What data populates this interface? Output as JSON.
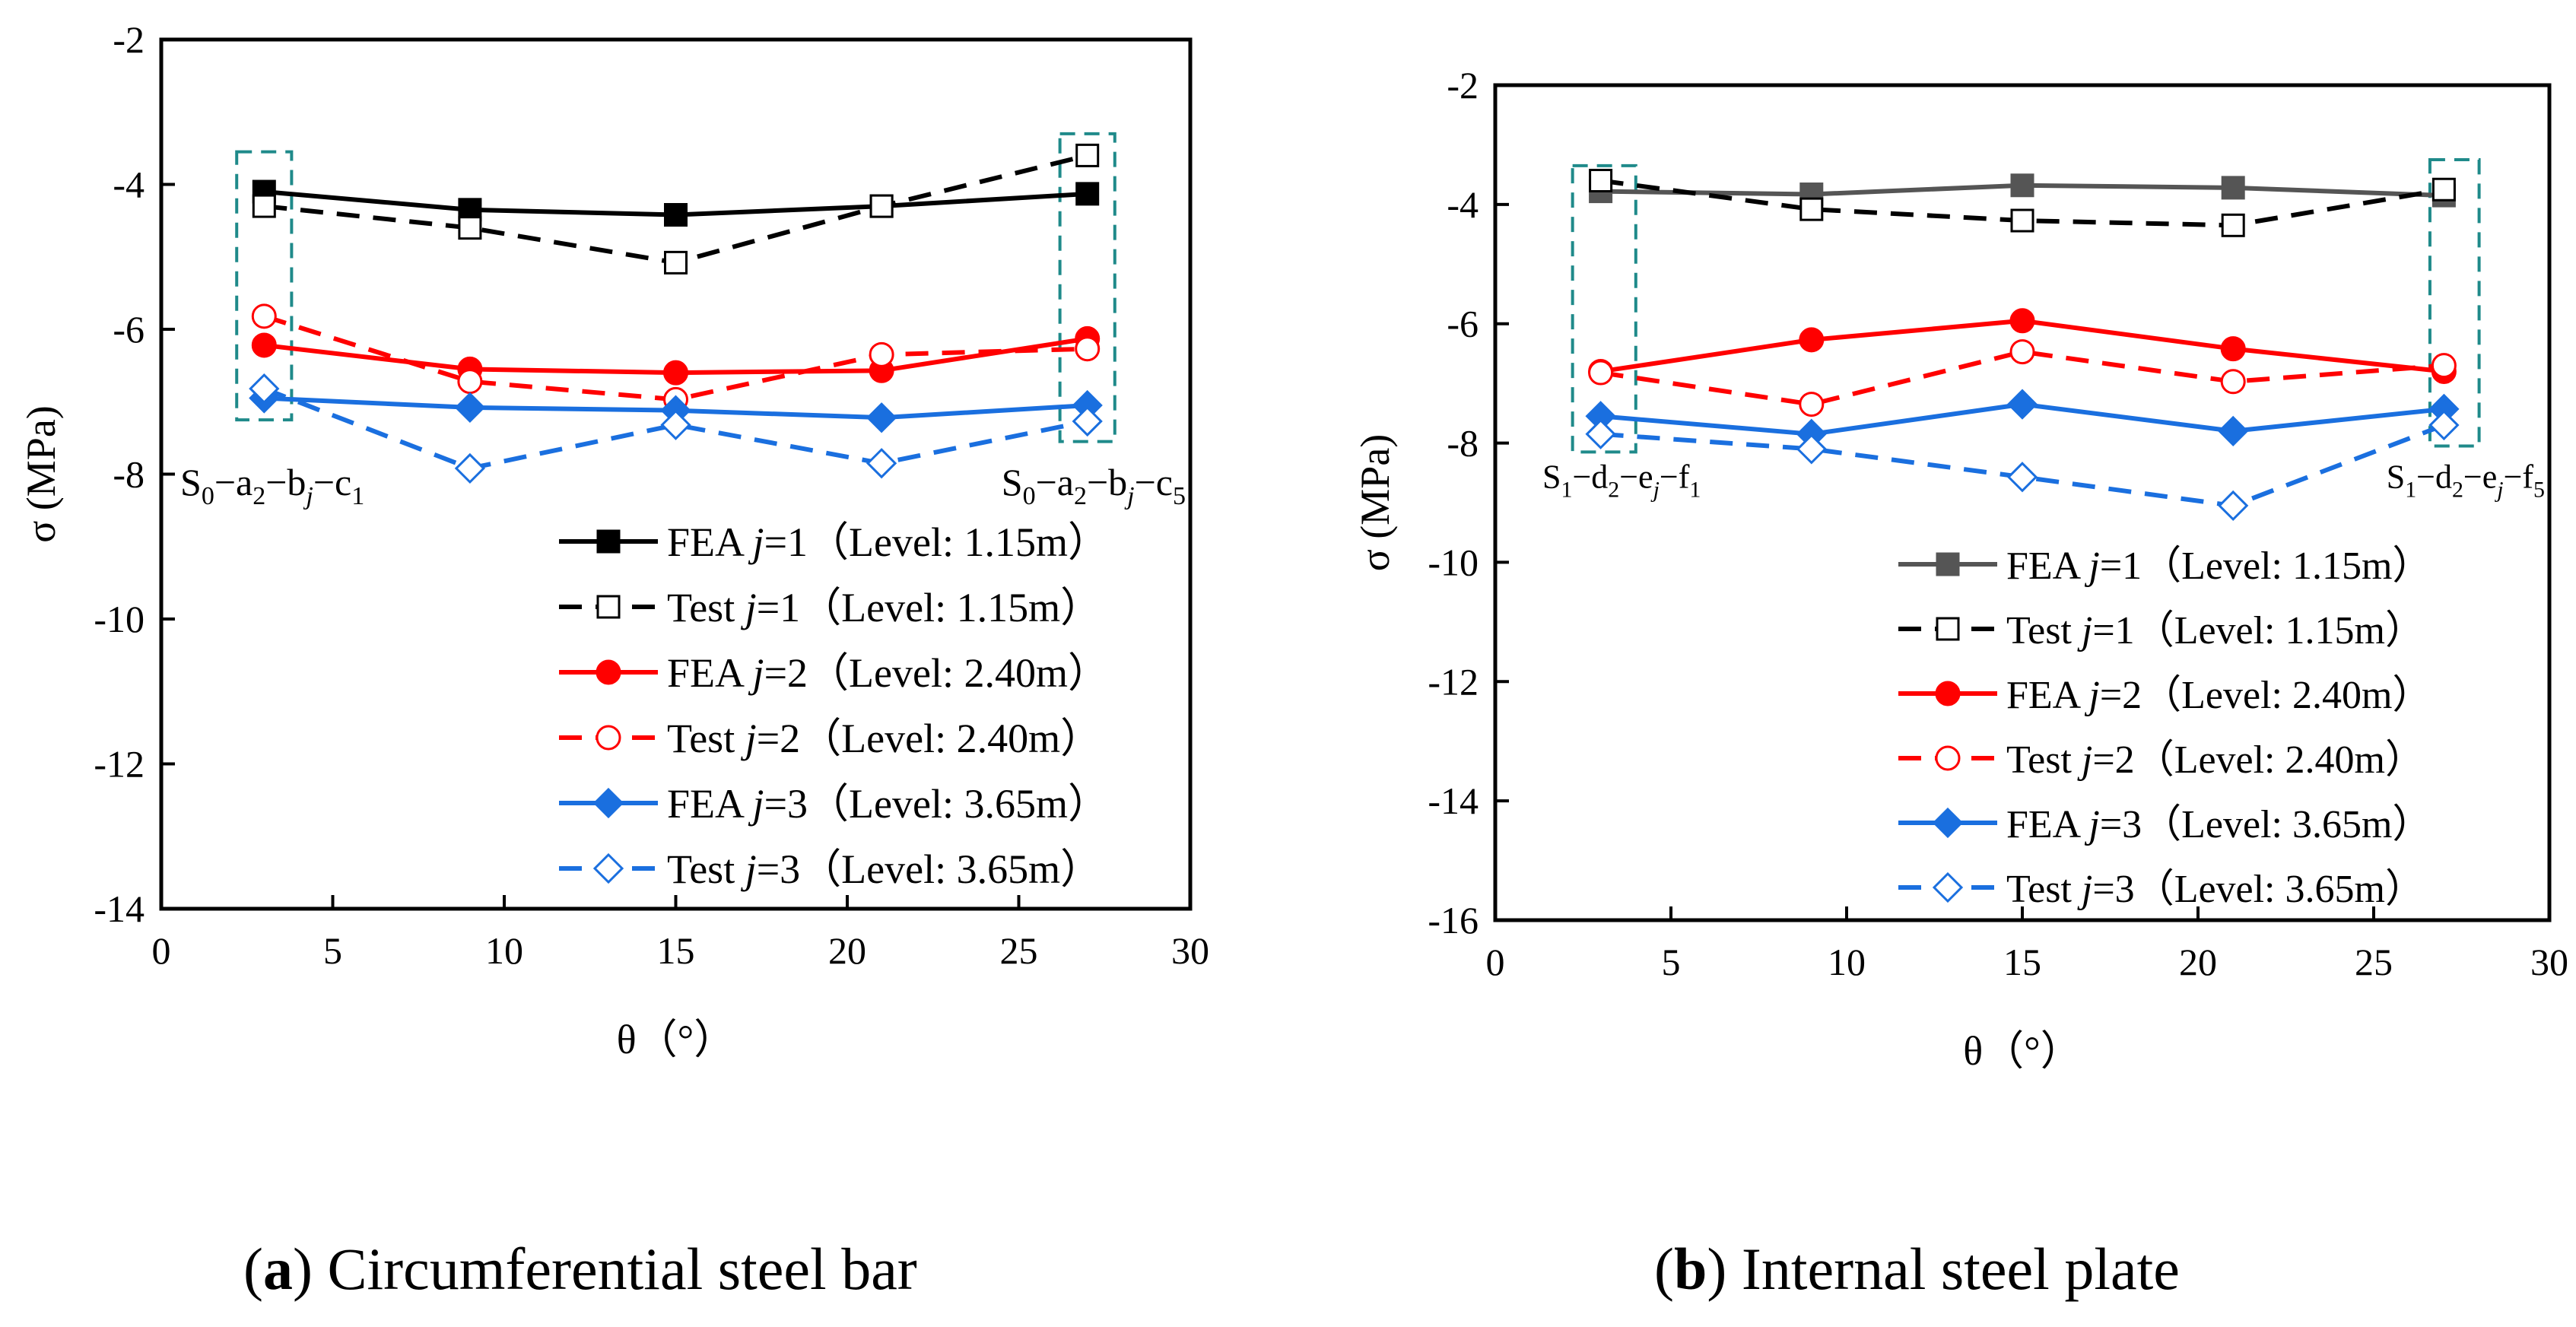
{
  "chart_data": [
    {
      "id": "a",
      "type": "line",
      "caption_letter": "a",
      "caption_paren_open": "(",
      "caption_paren_close": ")",
      "caption_text": " Circumferential steel bar",
      "xlabel": "θ（°）",
      "ylabel": "σ (MPa)",
      "xlim": [
        0,
        30
      ],
      "ylim": [
        -14,
        -2
      ],
      "x_ticks": [
        0,
        5,
        10,
        15,
        20,
        25,
        30
      ],
      "y_ticks": [
        -14,
        -12,
        -10,
        -8,
        -6,
        -4,
        -2
      ],
      "x": [
        3,
        9,
        15,
        21,
        27
      ],
      "series": [
        {
          "name": "FEA j=1（Level: 1.15m）",
          "prefix": "FEA ",
          "j": "j",
          "eq": "=1",
          "level": "（Level: 1.15m）",
          "color": "#000000",
          "dash": false,
          "marker": "square-filled",
          "values": [
            -4.1,
            -4.35,
            -4.42,
            -4.3,
            -4.13
          ]
        },
        {
          "name": "Test j=1（Level: 1.15m）",
          "prefix": "Test ",
          "j": "j",
          "eq": "=1",
          "level": "（Level: 1.15m）",
          "color": "#000000",
          "dash": true,
          "marker": "square-open",
          "values": [
            -4.3,
            -4.6,
            -5.08,
            -4.3,
            -3.6
          ]
        },
        {
          "name": "FEA j=2（Level: 2.40m）",
          "prefix": "FEA ",
          "j": "j",
          "eq": "=2",
          "level": "（Level: 2.40m）",
          "color": "#ff0000",
          "dash": false,
          "marker": "circle-filled",
          "values": [
            -6.22,
            -6.55,
            -6.6,
            -6.57,
            -6.13
          ]
        },
        {
          "name": "Test j=2（Level: 2.40m）",
          "prefix": "Test ",
          "j": "j",
          "eq": "=2",
          "level": "（Level: 2.40m）",
          "color": "#ff0000",
          "dash": true,
          "marker": "circle-open",
          "values": [
            -5.82,
            -6.72,
            -6.97,
            -6.35,
            -6.27
          ]
        },
        {
          "name": "FEA j=3（Level: 3.65m）",
          "prefix": "FEA ",
          "j": "j",
          "eq": "=3",
          "level": "（Level: 3.65m）",
          "color": "#1a6fdf",
          "dash": false,
          "marker": "diamond-filled",
          "values": [
            -6.95,
            -7.08,
            -7.12,
            -7.22,
            -7.05
          ]
        },
        {
          "name": "Test j=3（Level: 3.65m）",
          "prefix": "Test ",
          "j": "j",
          "eq": "=3",
          "level": "（Level: 3.65m）",
          "color": "#1a6fdf",
          "dash": true,
          "marker": "diamond-open",
          "values": [
            -6.82,
            -7.92,
            -7.32,
            -7.85,
            -7.27
          ]
        }
      ],
      "annotations": [
        {
          "id": "left",
          "text": "S0−a2−bj−c1",
          "parts": [
            "S",
            "0",
            "−a",
            "2",
            "−b",
            "j",
            "−c",
            "1"
          ],
          "x_range": [
            2.2,
            3.8
          ],
          "y_range": [
            -7.25,
            -3.55
          ]
        },
        {
          "id": "right",
          "text": "S0−a2−bj−c5",
          "parts": [
            "S",
            "0",
            "−a",
            "2",
            "−b",
            "j",
            "−c",
            "5"
          ],
          "x_range": [
            26.2,
            27.8
          ],
          "y_range": [
            -7.55,
            -3.3
          ]
        }
      ],
      "legend": "lower-right"
    },
    {
      "id": "b",
      "type": "line",
      "caption_letter": "b",
      "caption_paren_open": "(",
      "caption_paren_close": ")",
      "caption_text": " Internal steel plate",
      "xlabel": "θ（°）",
      "ylabel": "σ (MPa)",
      "xlim": [
        0,
        30
      ],
      "ylim": [
        -16,
        -2
      ],
      "x_ticks": [
        0,
        5,
        10,
        15,
        20,
        25,
        30
      ],
      "y_ticks": [
        -16,
        -14,
        -12,
        -10,
        -8,
        -6,
        -4,
        -2
      ],
      "x": [
        3,
        9,
        15,
        21,
        27
      ],
      "series": [
        {
          "name": "FEA j=1（Level: 1.15m）",
          "prefix": "FEA ",
          "j": "j",
          "eq": "=1",
          "level": "（Level: 1.15m）",
          "color": "#555555",
          "dash": false,
          "marker": "square-filled",
          "values": [
            -3.78,
            -3.83,
            -3.68,
            -3.72,
            -3.85
          ]
        },
        {
          "name": "Test j=1（Level: 1.15m）",
          "prefix": "Test ",
          "j": "j",
          "eq": "=1",
          "level": "（Level: 1.15m）",
          "color": "#000000",
          "dash": true,
          "marker": "square-open",
          "values": [
            -3.6,
            -4.08,
            -4.27,
            -4.35,
            -3.75
          ]
        },
        {
          "name": "FEA j=2（Level: 2.40m）",
          "prefix": "FEA ",
          "j": "j",
          "eq": "=2",
          "level": "（Level: 2.40m）",
          "color": "#ff0000",
          "dash": false,
          "marker": "circle-filled",
          "values": [
            -6.8,
            -6.27,
            -5.95,
            -6.42,
            -6.8
          ]
        },
        {
          "name": "Test j=2（Level: 2.40m）",
          "prefix": "Test ",
          "j": "j",
          "eq": "=2",
          "level": "（Level: 2.40m）",
          "color": "#ff0000",
          "dash": true,
          "marker": "circle-open",
          "values": [
            -6.82,
            -7.35,
            -6.47,
            -6.97,
            -6.7
          ]
        },
        {
          "name": "FEA j=3（Level: 3.65m）",
          "prefix": "FEA ",
          "j": "j",
          "eq": "=3",
          "level": "（Level: 3.65m）",
          "color": "#1a6fdf",
          "dash": false,
          "marker": "diamond-filled",
          "values": [
            -7.55,
            -7.85,
            -7.35,
            -7.8,
            -7.43
          ]
        },
        {
          "name": "Test j=3（Level: 3.65m）",
          "prefix": "Test ",
          "j": "j",
          "eq": "=3",
          "level": "（Level: 3.65m）",
          "color": "#1a6fdf",
          "dash": true,
          "marker": "diamond-open",
          "values": [
            -7.85,
            -8.1,
            -8.57,
            -9.05,
            -7.7
          ]
        }
      ],
      "annotations": [
        {
          "id": "left",
          "text": "S1−d2−ej−f1",
          "parts": [
            "S",
            "1",
            "−d",
            "2",
            "−e",
            "j",
            "−f",
            "1"
          ],
          "x_range": [
            2.2,
            4.0
          ],
          "y_range": [
            -8.15,
            -3.35
          ]
        },
        {
          "id": "right",
          "text": "S1−d2−ej−f5",
          "parts": [
            "S",
            "1",
            "−d",
            "2",
            "−e",
            "j",
            "−f",
            "5"
          ],
          "x_range": [
            26.6,
            28.0
          ],
          "y_range": [
            -8.05,
            -3.25
          ]
        }
      ],
      "legend": "lower-right"
    }
  ]
}
